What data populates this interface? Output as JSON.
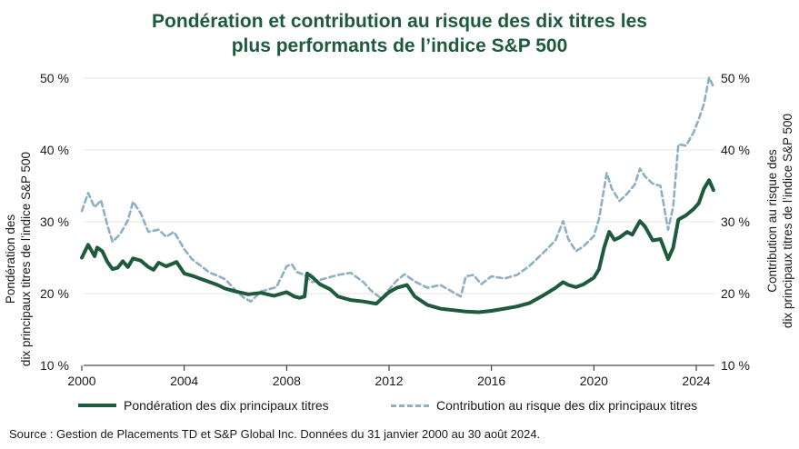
{
  "title_line1": "Pondération et contribution au risque des dix titres les",
  "title_line2": "plus performants de l’indice S&P 500",
  "source": "Source : Gestion de Placements TD et S&P Global Inc. Données du 31 janvier 2000 au 30 août 2024.",
  "colors": {
    "weight": "#1e5a3c",
    "risk": "#8eb0c4",
    "grid": "#e6e6e6",
    "axis": "#222222"
  },
  "chart_data": {
    "type": "line",
    "title": "Pondération et contribution au risque des dix titres les plus performants de l’indice S&P 500",
    "ylabel_left": [
      "Pondération des",
      "dix principaux titres de l’indice S&P 500"
    ],
    "ylabel_right": [
      "Contribution au risque des",
      "dix principaux titres de l’indice S&P 500"
    ],
    "xlim": [
      2000,
      2024.67
    ],
    "ylim": [
      10,
      50
    ],
    "x_ticks": [
      2000,
      2004,
      2008,
      2012,
      2016,
      2020,
      2024
    ],
    "y_ticks": [
      10,
      20,
      30,
      40,
      50
    ],
    "y_tick_labels": [
      "10 %",
      "20 %",
      "30 %",
      "40 %",
      "50 %"
    ],
    "grid": "horizontal",
    "legend_position": "bottom",
    "series": [
      {
        "name": "Pondération des dix principaux titres",
        "style": "solid",
        "points": [
          [
            2000.0,
            25.0
          ],
          [
            2000.25,
            26.8
          ],
          [
            2000.5,
            25.2
          ],
          [
            2000.6,
            26.4
          ],
          [
            2000.8,
            25.9
          ],
          [
            2001.0,
            24.4
          ],
          [
            2001.2,
            23.4
          ],
          [
            2001.4,
            23.6
          ],
          [
            2001.6,
            24.5
          ],
          [
            2001.8,
            23.7
          ],
          [
            2002.0,
            24.9
          ],
          [
            2002.3,
            24.6
          ],
          [
            2002.6,
            23.7
          ],
          [
            2002.8,
            23.3
          ],
          [
            2003.0,
            24.3
          ],
          [
            2003.3,
            23.8
          ],
          [
            2003.5,
            24.1
          ],
          [
            2003.7,
            24.4
          ],
          [
            2004.0,
            22.8
          ],
          [
            2004.3,
            22.5
          ],
          [
            2004.6,
            22.1
          ],
          [
            2005.0,
            21.6
          ],
          [
            2005.3,
            21.2
          ],
          [
            2005.6,
            20.7
          ],
          [
            2006.0,
            20.3
          ],
          [
            2006.5,
            19.9
          ],
          [
            2007.0,
            20.1
          ],
          [
            2007.5,
            19.7
          ],
          [
            2008.0,
            20.2
          ],
          [
            2008.3,
            19.6
          ],
          [
            2008.5,
            19.4
          ],
          [
            2008.7,
            19.6
          ],
          [
            2008.8,
            22.8
          ],
          [
            2009.0,
            22.3
          ],
          [
            2009.3,
            21.3
          ],
          [
            2009.7,
            20.6
          ],
          [
            2010.0,
            19.6
          ],
          [
            2010.5,
            19.1
          ],
          [
            2011.0,
            18.9
          ],
          [
            2011.5,
            18.6
          ],
          [
            2012.0,
            20.2
          ],
          [
            2012.3,
            20.8
          ],
          [
            2012.7,
            21.2
          ],
          [
            2013.0,
            19.6
          ],
          [
            2013.5,
            18.4
          ],
          [
            2014.0,
            17.9
          ],
          [
            2014.5,
            17.7
          ],
          [
            2015.0,
            17.5
          ],
          [
            2015.5,
            17.4
          ],
          [
            2016.0,
            17.6
          ],
          [
            2016.5,
            17.9
          ],
          [
            2017.0,
            18.2
          ],
          [
            2017.5,
            18.7
          ],
          [
            2018.0,
            19.7
          ],
          [
            2018.5,
            20.8
          ],
          [
            2018.8,
            21.6
          ],
          [
            2019.0,
            21.2
          ],
          [
            2019.3,
            20.9
          ],
          [
            2019.6,
            21.3
          ],
          [
            2020.0,
            22.2
          ],
          [
            2020.2,
            23.4
          ],
          [
            2020.4,
            26.4
          ],
          [
            2020.6,
            28.6
          ],
          [
            2020.8,
            27.5
          ],
          [
            2021.0,
            27.8
          ],
          [
            2021.3,
            28.6
          ],
          [
            2021.5,
            28.2
          ],
          [
            2021.8,
            30.1
          ],
          [
            2022.0,
            29.3
          ],
          [
            2022.3,
            27.4
          ],
          [
            2022.6,
            27.6
          ],
          [
            2022.9,
            24.8
          ],
          [
            2023.1,
            26.4
          ],
          [
            2023.3,
            30.3
          ],
          [
            2023.6,
            30.9
          ],
          [
            2023.9,
            31.8
          ],
          [
            2024.1,
            32.6
          ],
          [
            2024.3,
            34.6
          ],
          [
            2024.5,
            35.8
          ],
          [
            2024.67,
            34.4
          ]
        ]
      },
      {
        "name": "Contribution au risque des dix principaux titres",
        "style": "dashed",
        "points": [
          [
            2000.0,
            31.5
          ],
          [
            2000.25,
            34.0
          ],
          [
            2000.5,
            32.0
          ],
          [
            2000.75,
            33.0
          ],
          [
            2001.0,
            29.5
          ],
          [
            2001.2,
            27.2
          ],
          [
            2001.5,
            28.3
          ],
          [
            2001.8,
            30.2
          ],
          [
            2002.0,
            32.8
          ],
          [
            2002.3,
            31.2
          ],
          [
            2002.6,
            28.6
          ],
          [
            2003.0,
            28.9
          ],
          [
            2003.3,
            27.9
          ],
          [
            2003.6,
            28.6
          ],
          [
            2004.0,
            26.2
          ],
          [
            2004.3,
            24.8
          ],
          [
            2004.6,
            24.0
          ],
          [
            2005.0,
            22.9
          ],
          [
            2005.3,
            22.5
          ],
          [
            2005.6,
            22.0
          ],
          [
            2006.0,
            20.5
          ],
          [
            2006.3,
            19.5
          ],
          [
            2006.6,
            18.9
          ],
          [
            2007.0,
            20.3
          ],
          [
            2007.3,
            20.6
          ],
          [
            2007.6,
            20.9
          ],
          [
            2008.0,
            23.8
          ],
          [
            2008.2,
            24.1
          ],
          [
            2008.4,
            23.0
          ],
          [
            2008.7,
            22.6
          ],
          [
            2009.0,
            21.6
          ],
          [
            2009.5,
            22.1
          ],
          [
            2010.0,
            22.6
          ],
          [
            2010.5,
            22.9
          ],
          [
            2011.0,
            21.6
          ],
          [
            2011.3,
            20.4
          ],
          [
            2011.7,
            19.3
          ],
          [
            2012.0,
            20.6
          ],
          [
            2012.3,
            21.8
          ],
          [
            2012.6,
            22.7
          ],
          [
            2013.0,
            21.7
          ],
          [
            2013.5,
            20.8
          ],
          [
            2014.0,
            21.2
          ],
          [
            2014.5,
            20.2
          ],
          [
            2014.8,
            19.6
          ],
          [
            2015.0,
            22.4
          ],
          [
            2015.3,
            22.6
          ],
          [
            2015.6,
            21.3
          ],
          [
            2016.0,
            22.4
          ],
          [
            2016.5,
            22.1
          ],
          [
            2017.0,
            22.6
          ],
          [
            2017.5,
            23.9
          ],
          [
            2018.0,
            25.6
          ],
          [
            2018.5,
            27.4
          ],
          [
            2018.8,
            30.1
          ],
          [
            2019.0,
            27.6
          ],
          [
            2019.3,
            25.9
          ],
          [
            2019.6,
            26.6
          ],
          [
            2020.0,
            28.0
          ],
          [
            2020.2,
            30.4
          ],
          [
            2020.5,
            36.8
          ],
          [
            2020.7,
            34.6
          ],
          [
            2021.0,
            32.9
          ],
          [
            2021.3,
            33.9
          ],
          [
            2021.6,
            35.2
          ],
          [
            2021.8,
            37.4
          ],
          [
            2022.0,
            36.3
          ],
          [
            2022.3,
            35.3
          ],
          [
            2022.6,
            35.0
          ],
          [
            2022.9,
            28.9
          ],
          [
            2023.1,
            32.1
          ],
          [
            2023.3,
            40.8
          ],
          [
            2023.6,
            40.6
          ],
          [
            2023.9,
            42.5
          ],
          [
            2024.1,
            44.3
          ],
          [
            2024.3,
            46.4
          ],
          [
            2024.5,
            50.1
          ],
          [
            2024.67,
            48.8
          ]
        ]
      }
    ]
  }
}
